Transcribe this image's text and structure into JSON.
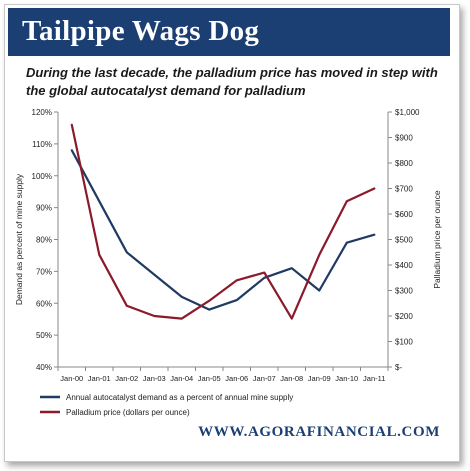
{
  "header": {
    "title": "Tailpipe Wags Dog",
    "subtitle": "During the last decade, the palladium price has moved in step with the global autocatalyst demand for palladium"
  },
  "footer": {
    "source": "WWW.AGORAFINANCIAL.COM"
  },
  "colors": {
    "banner": "#1b3e73",
    "demand_series": "#1f3a63",
    "price_series": "#8b1a2b"
  },
  "chart_data": {
    "type": "line",
    "x": [
      "Jan-00",
      "Jan-01",
      "Jan-02",
      "Jan-03",
      "Jan-04",
      "Jan-05",
      "Jan-06",
      "Jan-07",
      "Jan-08",
      "Jan-09",
      "Jan-10",
      "Jan-11"
    ],
    "y_left": {
      "label": "Demand as percent of mine supply",
      "range": [
        40,
        120
      ],
      "ticks": [
        40,
        50,
        60,
        70,
        80,
        90,
        100,
        110,
        120
      ],
      "tick_labels": [
        "40%",
        "50%",
        "60%",
        "70%",
        "80%",
        "90%",
        "100%",
        "110%",
        "120%"
      ]
    },
    "y_right": {
      "label": "Palladium price per ounce",
      "range": [
        0,
        1000
      ],
      "ticks": [
        0,
        100,
        200,
        300,
        400,
        500,
        600,
        700,
        800,
        900,
        1000
      ],
      "tick_labels": [
        "$-",
        "$100",
        "$200",
        "$300",
        "$400",
        "$500",
        "$600",
        "$700",
        "$800",
        "$900",
        "$1,000"
      ]
    },
    "series": [
      {
        "name": "Annual autocatalyst demand as a percent of annual mine supply",
        "axis": "left",
        "values": [
          108,
          92,
          76,
          69,
          62,
          58,
          61,
          68,
          71,
          64,
          79,
          81.5
        ]
      },
      {
        "name": "Palladium price (dollars per ounce)",
        "axis": "right",
        "values": [
          950,
          440,
          240,
          200,
          190,
          260,
          340,
          370,
          190,
          440,
          650,
          700
        ]
      }
    ],
    "grid": false,
    "legend": "bottom"
  }
}
